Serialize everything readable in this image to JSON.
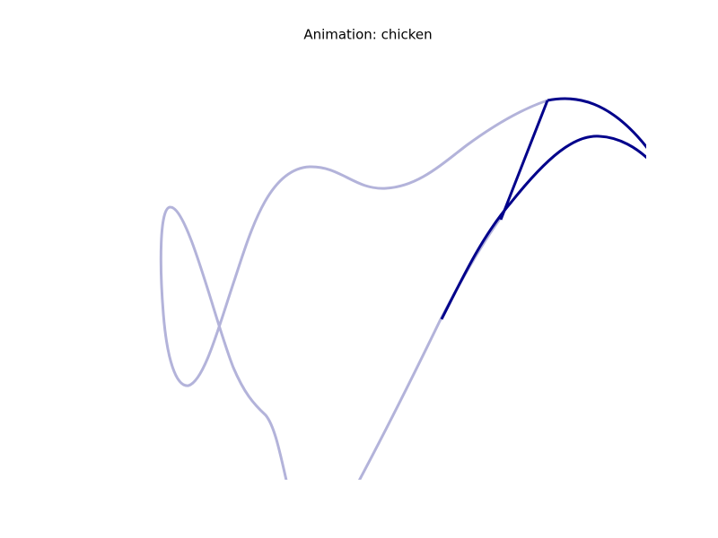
{
  "title": "Animation: chicken"
}
